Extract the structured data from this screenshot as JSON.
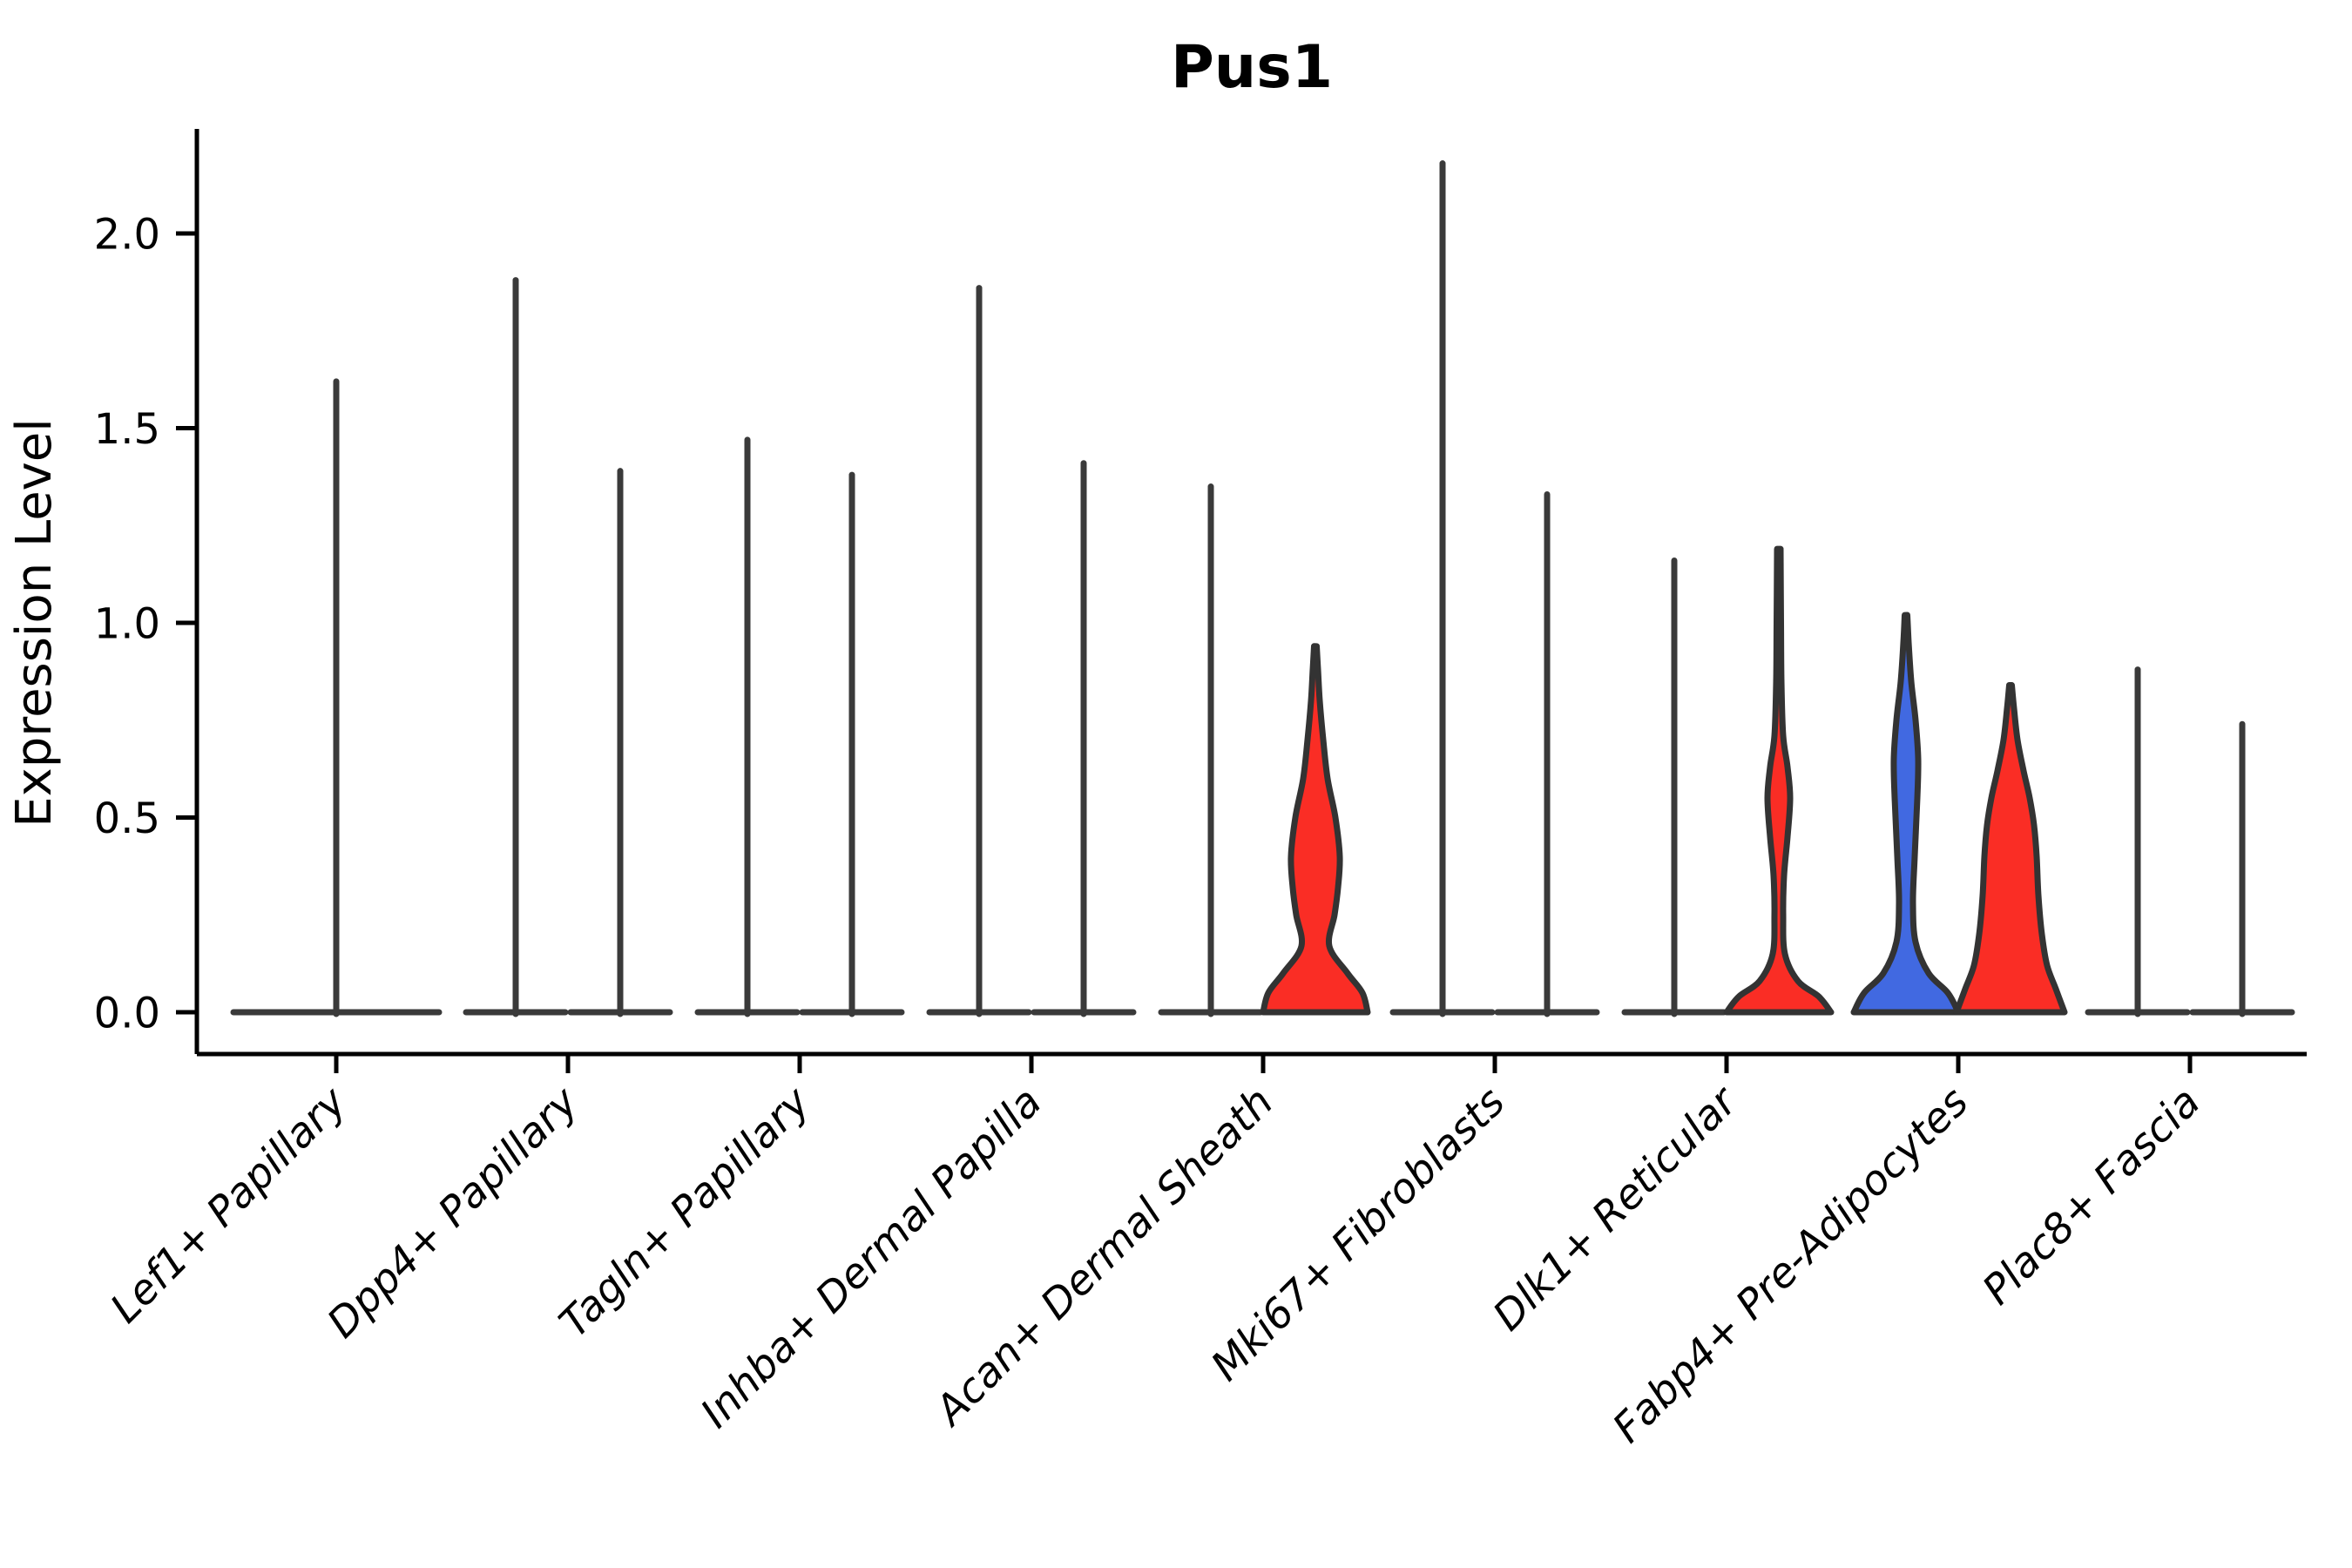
{
  "title": "Pus1",
  "y_axis": {
    "label": "Expression Level",
    "tick_labels": [
      "0.0",
      "0.5",
      "1.0",
      "1.5",
      "2.0"
    ],
    "tick_values": [
      0.0,
      0.5,
      1.0,
      1.5,
      2.0
    ]
  },
  "x_axis": {
    "tick_labels": [
      "Lef1+ Papillary",
      "Dpp4+ Papillary",
      "Tagln+ Papillary",
      "Inhba+ Dermal Papilla",
      "Acan+ Dermal Sheath",
      "Mki67+ Fibroblasts",
      "Dlk1+ Reticular",
      "Fabp4+ Pre-Adipocytes",
      "Plac8+ Fascia"
    ]
  },
  "chart_data": {
    "type": "violin",
    "title": "Pus1",
    "xlabel": "",
    "ylabel": "Expression Level",
    "ylim": [
      0,
      2.27
    ],
    "yticks": [
      0.0,
      0.5,
      1.0,
      1.5,
      2.0
    ],
    "grid": "off",
    "legend": "none",
    "categories": [
      "Lef1+ Papillary",
      "Dpp4+ Papillary",
      "Tagln+ Papillary",
      "Inhba+ Dermal Papilla",
      "Acan+ Dermal Sheath",
      "Mki67+ Fibroblasts",
      "Dlk1+ Reticular",
      "Fabp4+ Pre-Adipocytes",
      "Plac8+ Fascia"
    ],
    "colors": {
      "red_fill": "#FA2D25",
      "blue_fill": "#4169E1",
      "outline": "#333333",
      "spike": "#3A3A3A",
      "axis": "#000000"
    },
    "violins": [
      {
        "category": "Lef1+ Papillary",
        "slot": "full",
        "shape": "spike",
        "max_expression": 1.62,
        "fill": "none",
        "base_halfwidth": 118
      },
      {
        "category": "Dpp4+ Papillary",
        "slot": "left",
        "shape": "spike",
        "max_expression": 1.88,
        "fill": "none",
        "base_halfwidth": 57
      },
      {
        "category": "Dpp4+ Papillary",
        "slot": "right",
        "shape": "spike",
        "max_expression": 1.39,
        "fill": "none",
        "base_halfwidth": 57
      },
      {
        "category": "Tagln+ Papillary",
        "slot": "left",
        "shape": "spike",
        "max_expression": 1.47,
        "fill": "none",
        "base_halfwidth": 57
      },
      {
        "category": "Tagln+ Papillary",
        "slot": "right",
        "shape": "spike",
        "max_expression": 1.38,
        "fill": "none",
        "base_halfwidth": 57
      },
      {
        "category": "Inhba+ Dermal Papilla",
        "slot": "left",
        "shape": "spike",
        "max_expression": 1.86,
        "fill": "none",
        "base_halfwidth": 57
      },
      {
        "category": "Inhba+ Dermal Papilla",
        "slot": "right",
        "shape": "spike",
        "max_expression": 1.41,
        "fill": "none",
        "base_halfwidth": 57
      },
      {
        "category": "Acan+ Dermal Sheath",
        "slot": "left",
        "shape": "spike",
        "max_expression": 1.35,
        "fill": "none",
        "base_halfwidth": 57
      },
      {
        "category": "Acan+ Dermal Sheath",
        "slot": "right",
        "shape": "violin",
        "max_expression": 0.94,
        "fill": "red_fill",
        "profile": [
          [
            0,
            60
          ],
          [
            0.05,
            54
          ],
          [
            0.1,
            37
          ],
          [
            0.17,
            16
          ],
          [
            0.25,
            22
          ],
          [
            0.32,
            26
          ],
          [
            0.4,
            28
          ],
          [
            0.5,
            23
          ],
          [
            0.6,
            14
          ],
          [
            0.7,
            9
          ],
          [
            0.8,
            5
          ],
          [
            0.88,
            3
          ],
          [
            0.94,
            1.5
          ]
        ]
      },
      {
        "category": "Mki67+ Fibroblasts",
        "slot": "left",
        "shape": "spike",
        "max_expression": 2.18,
        "fill": "none",
        "base_halfwidth": 57
      },
      {
        "category": "Mki67+ Fibroblasts",
        "slot": "right",
        "shape": "spike",
        "max_expression": 1.33,
        "fill": "none",
        "base_halfwidth": 57
      },
      {
        "category": "Dlk1+ Reticular",
        "slot": "left",
        "shape": "spike",
        "max_expression": 1.16,
        "fill": "none",
        "base_halfwidth": 57
      },
      {
        "category": "Dlk1+ Reticular",
        "slot": "right",
        "shape": "violin",
        "max_expression": 1.19,
        "fill": "red_fill",
        "profile": [
          [
            0,
            60
          ],
          [
            0.04,
            46
          ],
          [
            0.08,
            22
          ],
          [
            0.15,
            7
          ],
          [
            0.25,
            5
          ],
          [
            0.35,
            6
          ],
          [
            0.45,
            10
          ],
          [
            0.55,
            13
          ],
          [
            0.63,
            10
          ],
          [
            0.71,
            5
          ],
          [
            0.85,
            3
          ],
          [
            1.0,
            2.5
          ],
          [
            1.19,
            2
          ]
        ]
      },
      {
        "category": "Fabp4+ Pre-Adipocytes",
        "slot": "left",
        "shape": "violin",
        "max_expression": 1.02,
        "fill": "blue_fill",
        "profile": [
          [
            0,
            60
          ],
          [
            0.05,
            48
          ],
          [
            0.1,
            26
          ],
          [
            0.18,
            11
          ],
          [
            0.28,
            8
          ],
          [
            0.4,
            10
          ],
          [
            0.55,
            13
          ],
          [
            0.65,
            14
          ],
          [
            0.75,
            11
          ],
          [
            0.85,
            6
          ],
          [
            0.95,
            3
          ],
          [
            1.02,
            1.5
          ]
        ]
      },
      {
        "category": "Fabp4+ Pre-Adipocytes",
        "slot": "right",
        "shape": "violin",
        "max_expression": 0.84,
        "fill": "red_fill",
        "profile": [
          [
            0,
            62
          ],
          [
            0.06,
            52
          ],
          [
            0.12,
            42
          ],
          [
            0.2,
            36
          ],
          [
            0.3,
            32
          ],
          [
            0.4,
            30
          ],
          [
            0.48,
            27
          ],
          [
            0.55,
            22
          ],
          [
            0.62,
            15
          ],
          [
            0.7,
            8
          ],
          [
            0.78,
            4
          ],
          [
            0.84,
            1.5
          ]
        ]
      },
      {
        "category": "Plac8+ Fascia",
        "slot": "left",
        "shape": "spike",
        "max_expression": 0.88,
        "fill": "none",
        "base_halfwidth": 57
      },
      {
        "category": "Plac8+ Fascia",
        "slot": "right",
        "shape": "spike",
        "max_expression": 0.74,
        "fill": "none",
        "base_halfwidth": 57
      }
    ]
  }
}
